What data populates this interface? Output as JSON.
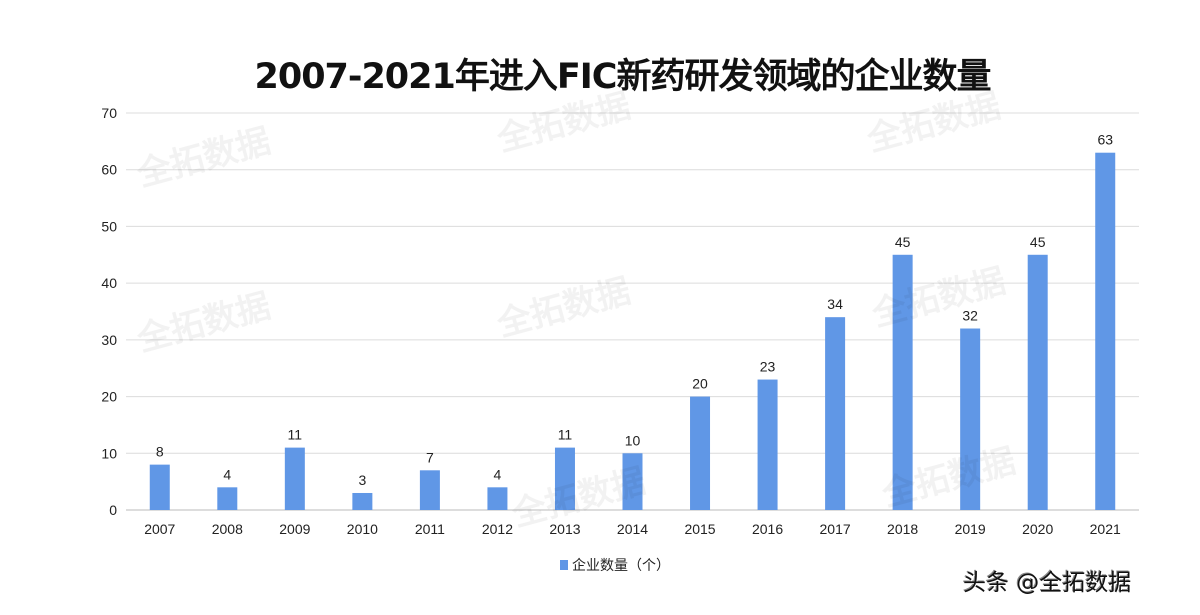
{
  "chart_data": {
    "type": "bar",
    "title": "2007-2021年进入FIC新药研发领域的企业数量",
    "categories": [
      "2007",
      "2008",
      "2009",
      "2010",
      "2011",
      "2012",
      "2013",
      "2014",
      "2015",
      "2016",
      "2017",
      "2018",
      "2019",
      "2020",
      "2021"
    ],
    "series": [
      {
        "name": "企业数量（个）",
        "values": [
          8,
          4,
          11,
          3,
          7,
          4,
          11,
          10,
          20,
          23,
          34,
          45,
          32,
          45,
          63
        ],
        "color": "#6097E6"
      }
    ],
    "xlabel": "",
    "ylabel": "",
    "ylim": [
      0,
      70
    ],
    "yticks": [
      0,
      10,
      20,
      30,
      40,
      50,
      60,
      70
    ],
    "grid": true,
    "legend_position": "bottom"
  },
  "watermark": "全拓数据",
  "corner_credit": "头条 @全拓数据"
}
